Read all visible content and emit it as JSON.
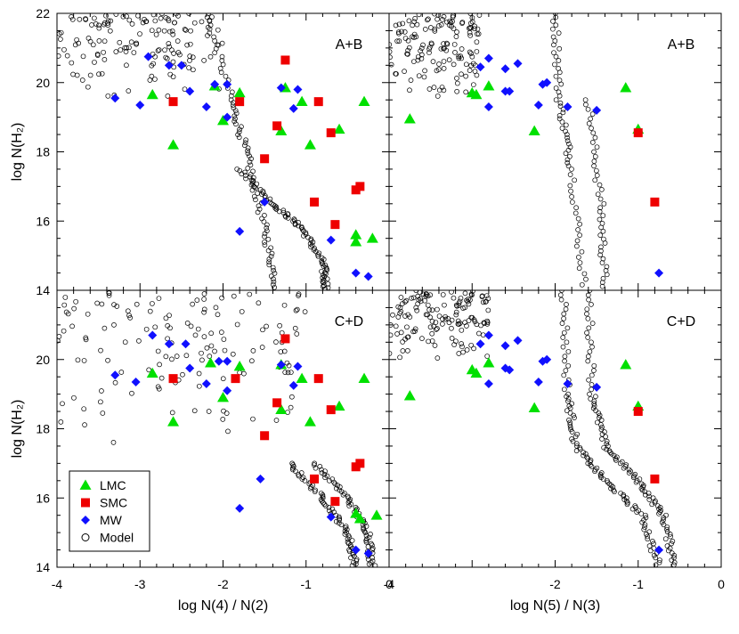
{
  "chart_data": {
    "type": "scatter",
    "layout": "2x2 panel grid, shared axes",
    "legend": {
      "placement": "bottom-left of lower-left panel",
      "entries": [
        {
          "label": "LMC",
          "marker": "triangle",
          "color": "#00e000"
        },
        {
          "label": "SMC",
          "marker": "square",
          "color": "#ee0000"
        },
        {
          "label": "MW",
          "marker": "diamond",
          "color": "#1010ff"
        },
        {
          "label": "Model",
          "marker": "open-circle",
          "color": "#000000"
        }
      ]
    },
    "ylabel": "log N(H₂)",
    "ylim": [
      14,
      22
    ],
    "yticks": [
      14,
      16,
      18,
      20,
      22
    ],
    "panels": [
      {
        "id": "top-left",
        "label": "A+B",
        "xlim": [
          -4,
          0
        ],
        "xticks": [],
        "ylabel": "log N(H₂)",
        "series": {
          "LMC": [
            [
              -2.85,
              19.65
            ],
            [
              -2.6,
              18.2
            ],
            [
              -2.1,
              19.9
            ],
            [
              -1.8,
              19.7
            ],
            [
              -2.0,
              18.9
            ],
            [
              -1.25,
              19.85
            ],
            [
              -1.05,
              19.45
            ],
            [
              -1.3,
              18.6
            ],
            [
              -0.95,
              18.2
            ],
            [
              -0.6,
              18.65
            ],
            [
              -0.3,
              19.45
            ],
            [
              -0.4,
              15.6
            ],
            [
              -0.4,
              15.4
            ],
            [
              -0.2,
              15.5
            ]
          ],
          "SMC": [
            [
              -2.6,
              19.45
            ],
            [
              -1.8,
              19.45
            ],
            [
              -1.25,
              20.65
            ],
            [
              -1.35,
              18.75
            ],
            [
              -0.85,
              19.45
            ],
            [
              -0.7,
              18.55
            ],
            [
              -1.5,
              17.8
            ],
            [
              -0.9,
              16.55
            ],
            [
              -0.4,
              16.9
            ],
            [
              -0.35,
              17.0
            ],
            [
              -0.65,
              15.9
            ]
          ],
          "MW": [
            [
              -3.3,
              19.55
            ],
            [
              -3.0,
              19.35
            ],
            [
              -2.9,
              20.75
            ],
            [
              -2.65,
              20.5
            ],
            [
              -2.5,
              20.5
            ],
            [
              -2.4,
              19.75
            ],
            [
              -2.2,
              19.3
            ],
            [
              -2.1,
              19.95
            ],
            [
              -1.95,
              19.95
            ],
            [
              -1.95,
              19.0
            ],
            [
              -1.3,
              19.85
            ],
            [
              -1.1,
              19.8
            ],
            [
              -1.15,
              19.25
            ],
            [
              -1.5,
              16.55
            ],
            [
              -1.8,
              15.7
            ],
            [
              -0.7,
              15.45
            ],
            [
              -0.4,
              14.5
            ],
            [
              -0.25,
              14.4
            ]
          ]
        },
        "model_tracks": [
          {
            "scatter_region": {
              "x": [
                -4.0,
                -2.0
              ],
              "y": [
                19.5,
                22.0
              ]
            }
          },
          {
            "x": [
              -2.2,
              -1.9,
              -1.7,
              -1.5,
              -1.35
            ],
            "y": [
              22.0,
              19.5,
              17.8,
              15.8,
              14.0
            ]
          },
          {
            "x": [
              -1.8,
              -1.4,
              -1.05,
              -0.8,
              -0.75
            ],
            "y": [
              17.5,
              16.5,
              15.8,
              14.8,
              14.0
            ]
          }
        ]
      },
      {
        "id": "top-right",
        "label": "A+B",
        "xlim": [
          -4,
          0
        ],
        "xticks": [],
        "series": {
          "LMC": [
            [
              -3.75,
              18.95
            ],
            [
              -3.0,
              19.7
            ],
            [
              -2.95,
              19.65
            ],
            [
              -2.8,
              19.9
            ],
            [
              -2.25,
              18.6
            ],
            [
              -1.15,
              19.85
            ],
            [
              -1.0,
              18.65
            ]
          ],
          "SMC": [
            [
              -1.0,
              18.55
            ],
            [
              -0.8,
              16.55
            ]
          ],
          "MW": [
            [
              -2.9,
              20.45
            ],
            [
              -2.8,
              20.7
            ],
            [
              -2.6,
              20.4
            ],
            [
              -2.45,
              20.55
            ],
            [
              -2.6,
              19.75
            ],
            [
              -2.8,
              19.3
            ],
            [
              -2.55,
              19.75
            ],
            [
              -2.15,
              19.95
            ],
            [
              -2.1,
              20.0
            ],
            [
              -2.2,
              19.35
            ],
            [
              -1.85,
              19.3
            ],
            [
              -1.5,
              19.2
            ],
            [
              -0.75,
              14.5
            ]
          ]
        },
        "model_tracks": [
          {
            "scatter_region": {
              "x": [
                -4.0,
                -2.9
              ],
              "y": [
                19.5,
                22.0
              ]
            }
          },
          {
            "x": [
              -2.0,
              -1.95,
              -1.8,
              -1.65
            ],
            "y": [
              22.0,
              19.5,
              17.5,
              14.0
            ]
          },
          {
            "x": [
              -1.6,
              -1.45,
              -1.4
            ],
            "y": [
              19.5,
              16.5,
              14.0
            ]
          }
        ]
      },
      {
        "id": "bottom-left",
        "label": "C+D",
        "xlim": [
          -4,
          0
        ],
        "xticks": [
          -4,
          -3,
          -2,
          -1,
          0
        ],
        "xlabel": "log N(4) / N(2)",
        "ylabel": "log N(H₂)",
        "series": {
          "LMC": [
            [
              -2.85,
              19.6
            ],
            [
              -2.6,
              18.2
            ],
            [
              -2.15,
              19.9
            ],
            [
              -1.8,
              19.8
            ],
            [
              -2.0,
              18.9
            ],
            [
              -1.3,
              19.85
            ],
            [
              -1.05,
              19.45
            ],
            [
              -1.3,
              18.55
            ],
            [
              -0.95,
              18.2
            ],
            [
              -0.6,
              18.65
            ],
            [
              -0.3,
              19.45
            ],
            [
              -0.4,
              15.55
            ],
            [
              -0.35,
              15.4
            ],
            [
              -0.15,
              15.5
            ]
          ],
          "SMC": [
            [
              -2.6,
              19.45
            ],
            [
              -1.85,
              19.45
            ],
            [
              -1.25,
              20.6
            ],
            [
              -1.35,
              18.75
            ],
            [
              -0.85,
              19.45
            ],
            [
              -0.7,
              18.55
            ],
            [
              -1.5,
              17.8
            ],
            [
              -0.9,
              16.55
            ],
            [
              -0.4,
              16.9
            ],
            [
              -0.35,
              17.0
            ],
            [
              -0.65,
              15.9
            ]
          ],
          "MW": [
            [
              -3.3,
              19.55
            ],
            [
              -3.05,
              19.35
            ],
            [
              -2.85,
              20.7
            ],
            [
              -2.65,
              20.45
            ],
            [
              -2.45,
              20.45
            ],
            [
              -2.4,
              19.75
            ],
            [
              -2.2,
              19.3
            ],
            [
              -2.05,
              19.95
            ],
            [
              -1.95,
              19.95
            ],
            [
              -1.95,
              19.1
            ],
            [
              -1.3,
              19.85
            ],
            [
              -1.1,
              19.8
            ],
            [
              -1.15,
              19.25
            ],
            [
              -1.55,
              16.55
            ],
            [
              -1.8,
              15.7
            ],
            [
              -0.7,
              15.45
            ],
            [
              -0.4,
              14.5
            ],
            [
              -0.25,
              14.4
            ]
          ]
        },
        "model_tracks": [
          {
            "scatter_region": {
              "x": [
                -4.0,
                -1.0
              ],
              "y": [
                17.5,
                22.0
              ]
            }
          },
          {
            "x": [
              -1.2,
              -0.8,
              -0.5,
              -0.4
            ],
            "y": [
              17.0,
              16.0,
              15.0,
              14.0
            ]
          },
          {
            "x": [
              -0.9,
              -0.5,
              -0.25,
              -0.2
            ],
            "y": [
              17.0,
              16.0,
              15.0,
              14.0
            ]
          }
        ]
      },
      {
        "id": "bottom-right",
        "label": "C+D",
        "xlim": [
          -4,
          0
        ],
        "xticks": [
          -4,
          -2,
          -1,
          0
        ],
        "xlabel": "log N(5) / N(3)",
        "series": {
          "LMC": [
            [
              -3.75,
              18.95
            ],
            [
              -3.0,
              19.7
            ],
            [
              -2.95,
              19.6
            ],
            [
              -2.8,
              19.9
            ],
            [
              -2.25,
              18.6
            ],
            [
              -1.15,
              19.85
            ],
            [
              -1.0,
              18.65
            ]
          ],
          "SMC": [
            [
              -1.0,
              18.5
            ],
            [
              -0.8,
              16.55
            ]
          ],
          "MW": [
            [
              -2.9,
              20.45
            ],
            [
              -2.8,
              20.7
            ],
            [
              -2.6,
              20.4
            ],
            [
              -2.45,
              20.55
            ],
            [
              -2.6,
              19.75
            ],
            [
              -2.8,
              19.3
            ],
            [
              -2.55,
              19.7
            ],
            [
              -2.15,
              19.95
            ],
            [
              -2.1,
              20.0
            ],
            [
              -2.2,
              19.35
            ],
            [
              -1.85,
              19.3
            ],
            [
              -1.5,
              19.2
            ],
            [
              -0.75,
              14.5
            ]
          ]
        },
        "model_tracks": [
          {
            "scatter_region": {
              "x": [
                -4.0,
                -2.8
              ],
              "y": [
                20.0,
                22.0
              ]
            }
          },
          {
            "x": [
              -1.9,
              -1.85,
              -1.75,
              -1.4,
              -0.95,
              -0.75
            ],
            "y": [
              22.0,
              19.0,
              17.5,
              16.5,
              15.5,
              14.0
            ]
          },
          {
            "x": [
              -1.6,
              -1.55,
              -1.4,
              -1.0,
              -0.7,
              -0.55
            ],
            "y": [
              22.0,
              19.0,
              17.5,
              16.5,
              15.5,
              14.0
            ]
          }
        ]
      }
    ]
  },
  "colors": {
    "lmc": "#00e000",
    "smc": "#ee0000",
    "mw": "#1010ff",
    "model": "#000000"
  }
}
